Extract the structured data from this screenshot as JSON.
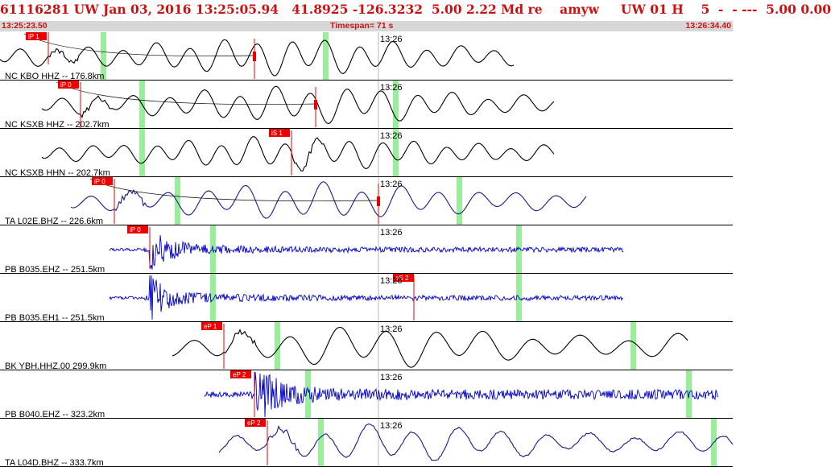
{
  "header": {
    "title": "61116281 UW Jan 03, 2016 13:25:05.94   41.8925 -126.3232  5.00 2.22 Md re    amyw     UW 01 H    5  -  - ---  5.00 0.00",
    "start_time": "13:25:23.50",
    "timespan": "Timespan=  71 s",
    "end_time": "13:26:34.40"
  },
  "colors": {
    "header_text": "#cc1111",
    "pick_box": "#ee0000",
    "trace_black": "#000000",
    "trace_blue": "#0000cc",
    "trace_navy": "#1a1a88",
    "green_marker": "#99ee99",
    "separator": "#000000"
  },
  "minute_label": "13:26",
  "channels": [
    {
      "label": "NC KBO HHZ -- 176.8km",
      "pick": "iP 1",
      "color": "black"
    },
    {
      "label": "NC KSXB HHZ -- 202.7km",
      "pick": "iP 0",
      "color": "black"
    },
    {
      "label": "NC KSXB HHN -- 202.7km",
      "pick": "iS 1",
      "color": "black"
    },
    {
      "label": "TA L02E.BHZ -- 226.6km",
      "pick": "iP 0",
      "color": "navy"
    },
    {
      "label": "PB B035.EHZ -- 251.5km",
      "pick": "iP 0",
      "color": "blue"
    },
    {
      "label": "PB B035.EH1 -- 251.5km",
      "pick": "eS 2",
      "color": "blue"
    },
    {
      "label": "BK YBH.HHZ.00 299.9km",
      "pick": "eP 1",
      "color": "black"
    },
    {
      "label": "PB B040.EHZ -- 323.2km",
      "pick": "eP 2",
      "color": "blue"
    },
    {
      "label": "TA L04D.BHZ -- 333.7km",
      "pick": "eP 2",
      "color": "navy"
    }
  ]
}
